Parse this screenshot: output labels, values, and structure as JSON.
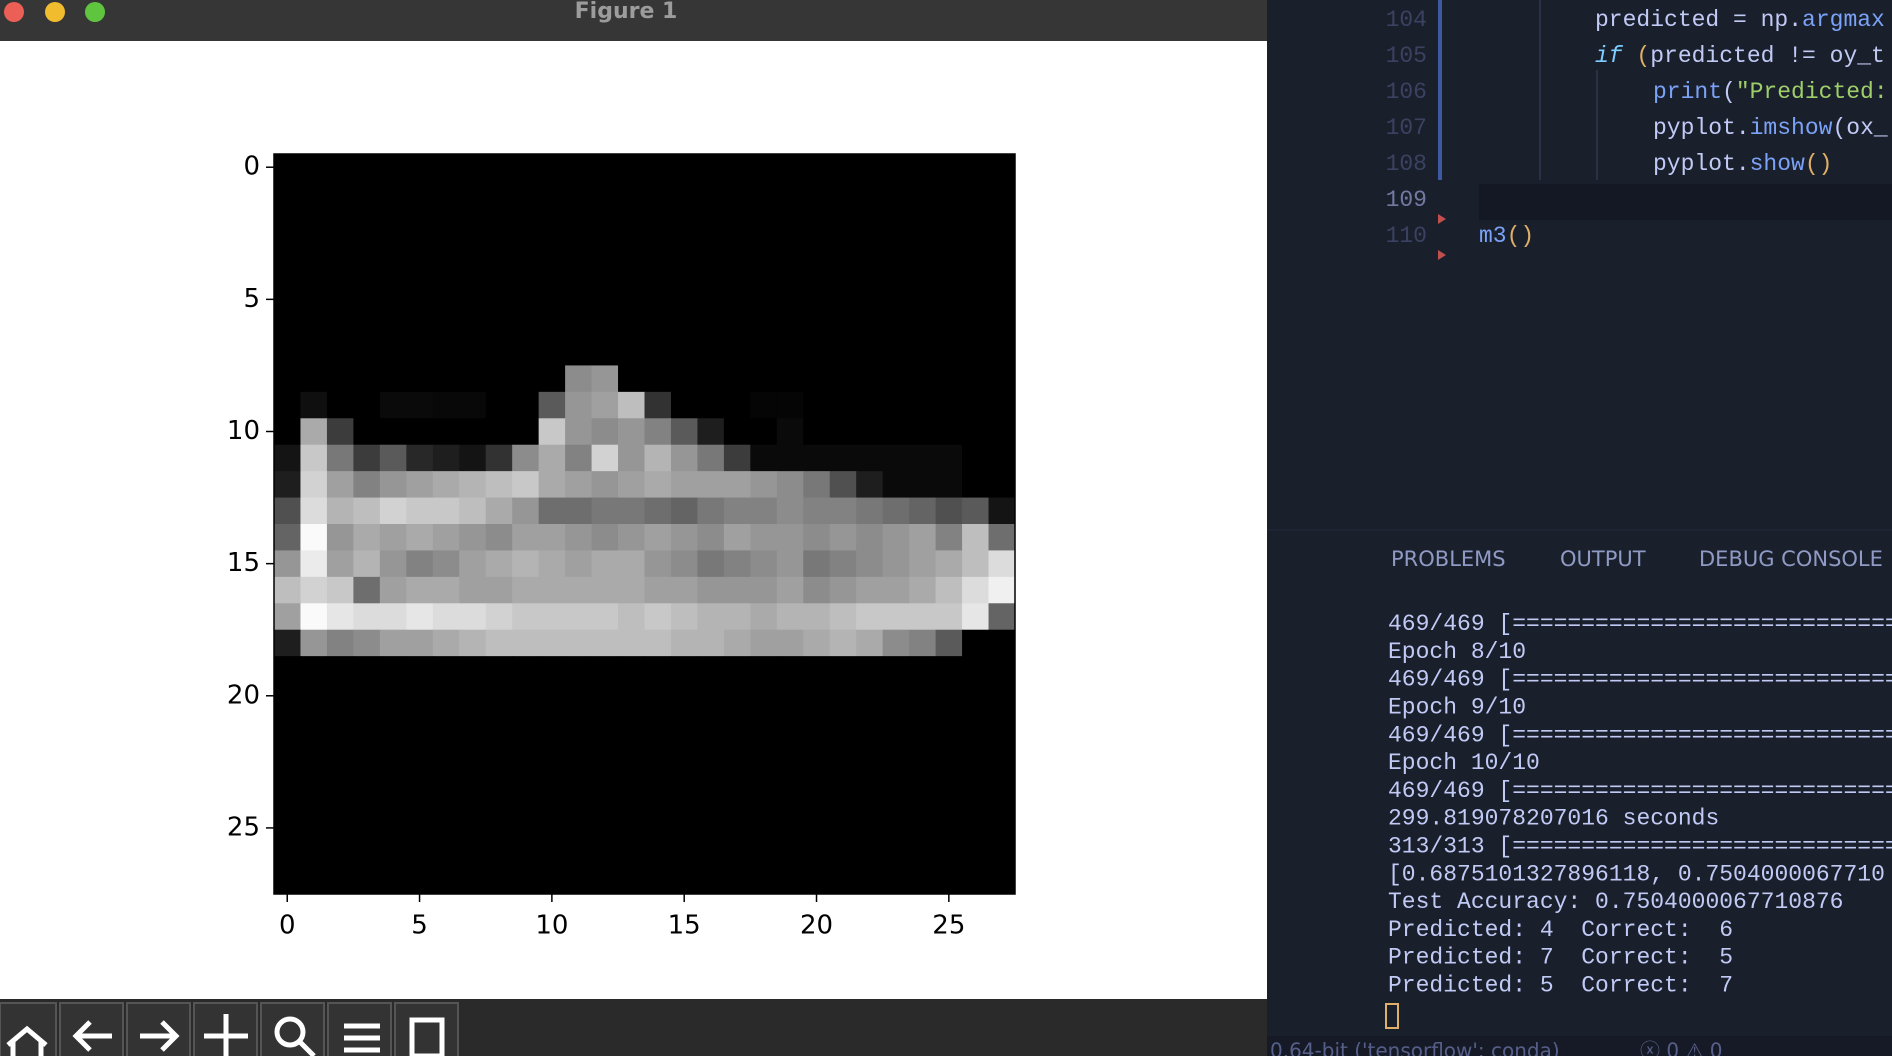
{
  "window": {
    "title": "Figure 1"
  },
  "chart_data": {
    "type": "heatmap",
    "cmap": "gray",
    "xlim": [
      -0.5,
      27.5
    ],
    "ylim": [
      27.5,
      -0.5
    ],
    "xticks": [
      0,
      5,
      10,
      15,
      20,
      25
    ],
    "yticks": [
      0,
      5,
      10,
      15,
      20,
      25
    ],
    "rows": [
      [
        0,
        0,
        0,
        0,
        0,
        0,
        0,
        0,
        0,
        0,
        0,
        0,
        0,
        0,
        0,
        0,
        0,
        0,
        0,
        0,
        0,
        0,
        0,
        0,
        0,
        0,
        0,
        0
      ],
      [
        0,
        0,
        0,
        0,
        0,
        0,
        0,
        0,
        0,
        0,
        0,
        0,
        0,
        0,
        0,
        0,
        0,
        0,
        0,
        0,
        0,
        0,
        0,
        0,
        0,
        0,
        0,
        0
      ],
      [
        0,
        0,
        0,
        0,
        0,
        0,
        0,
        0,
        0,
        0,
        0,
        0,
        0,
        0,
        0,
        0,
        0,
        0,
        0,
        0,
        0,
        0,
        0,
        0,
        0,
        0,
        0,
        0
      ],
      [
        0,
        0,
        0,
        0,
        0,
        0,
        0,
        0,
        0,
        0,
        0,
        0,
        0,
        0,
        0,
        0,
        0,
        0,
        0,
        0,
        0,
        0,
        0,
        0,
        0,
        0,
        0,
        0
      ],
      [
        0,
        0,
        0,
        0,
        0,
        0,
        0,
        0,
        0,
        0,
        0,
        0,
        0,
        0,
        0,
        0,
        0,
        0,
        0,
        0,
        0,
        0,
        0,
        0,
        0,
        0,
        0,
        0
      ],
      [
        0,
        0,
        0,
        0,
        0,
        0,
        0,
        0,
        0,
        0,
        0,
        0,
        0,
        0,
        0,
        0,
        0,
        0,
        0,
        0,
        0,
        0,
        0,
        0,
        0,
        0,
        0,
        0
      ],
      [
        0,
        0,
        0,
        0,
        0,
        0,
        0,
        0,
        0,
        0,
        0,
        0,
        0,
        0,
        0,
        0,
        0,
        0,
        0,
        0,
        0,
        0,
        0,
        0,
        0,
        0,
        0,
        0
      ],
      [
        0,
        0,
        0,
        0,
        0,
        0,
        0,
        0,
        0,
        0,
        0,
        0,
        0,
        0,
        0,
        0,
        0,
        0,
        0,
        0,
        0,
        0,
        0,
        0,
        0,
        0,
        0,
        0
      ],
      [
        0,
        0,
        0,
        0,
        0,
        0,
        0,
        0,
        0,
        0,
        0,
        140,
        150,
        0,
        0,
        0,
        0,
        0,
        0,
        0,
        0,
        0,
        0,
        0,
        0,
        0,
        0,
        0
      ],
      [
        0,
        15,
        0,
        0,
        10,
        10,
        8,
        8,
        0,
        0,
        90,
        150,
        160,
        190,
        50,
        0,
        0,
        0,
        5,
        5,
        0,
        0,
        0,
        0,
        0,
        0,
        0,
        0
      ],
      [
        0,
        170,
        60,
        0,
        0,
        0,
        0,
        0,
        0,
        0,
        200,
        150,
        140,
        150,
        130,
        90,
        30,
        0,
        0,
        10,
        0,
        0,
        0,
        0,
        0,
        0,
        0,
        0
      ],
      [
        20,
        200,
        120,
        60,
        90,
        40,
        30,
        20,
        50,
        140,
        170,
        130,
        210,
        150,
        180,
        150,
        120,
        60,
        10,
        10,
        10,
        10,
        10,
        10,
        10,
        10,
        0,
        0
      ],
      [
        30,
        210,
        160,
        130,
        150,
        160,
        170,
        180,
        190,
        200,
        170,
        160,
        150,
        160,
        170,
        160,
        160,
        160,
        150,
        140,
        120,
        80,
        30,
        10,
        10,
        10,
        0,
        0
      ],
      [
        80,
        220,
        180,
        190,
        210,
        200,
        200,
        190,
        170,
        150,
        110,
        110,
        120,
        120,
        110,
        100,
        120,
        130,
        130,
        140,
        130,
        130,
        120,
        110,
        100,
        80,
        90,
        20
      ],
      [
        100,
        250,
        150,
        170,
        160,
        170,
        160,
        150,
        140,
        160,
        160,
        150,
        140,
        150,
        160,
        150,
        140,
        160,
        150,
        150,
        140,
        150,
        140,
        150,
        160,
        130,
        190,
        110
      ],
      [
        150,
        235,
        160,
        180,
        150,
        130,
        140,
        160,
        170,
        180,
        170,
        160,
        170,
        170,
        150,
        140,
        120,
        130,
        140,
        150,
        120,
        130,
        140,
        150,
        160,
        170,
        190,
        220
      ],
      [
        190,
        210,
        200,
        110,
        160,
        170,
        170,
        160,
        160,
        170,
        170,
        170,
        170,
        170,
        160,
        160,
        150,
        150,
        150,
        160,
        140,
        150,
        160,
        160,
        170,
        190,
        220,
        240
      ],
      [
        160,
        250,
        230,
        220,
        220,
        230,
        220,
        220,
        210,
        200,
        200,
        200,
        200,
        190,
        200,
        190,
        180,
        180,
        170,
        180,
        180,
        190,
        200,
        200,
        200,
        200,
        230,
        100
      ],
      [
        30,
        150,
        130,
        140,
        160,
        160,
        170,
        180,
        190,
        190,
        190,
        190,
        190,
        190,
        190,
        180,
        180,
        170,
        160,
        160,
        170,
        180,
        170,
        140,
        130,
        90,
        0,
        0
      ],
      [
        0,
        0,
        0,
        0,
        0,
        0,
        0,
        0,
        0,
        0,
        0,
        0,
        0,
        0,
        0,
        0,
        0,
        0,
        0,
        0,
        0,
        0,
        0,
        0,
        0,
        0,
        0,
        0
      ],
      [
        0,
        0,
        0,
        0,
        0,
        0,
        0,
        0,
        0,
        0,
        0,
        0,
        0,
        0,
        0,
        0,
        0,
        0,
        0,
        0,
        0,
        0,
        0,
        0,
        0,
        0,
        0,
        0
      ],
      [
        0,
        0,
        0,
        0,
        0,
        0,
        0,
        0,
        0,
        0,
        0,
        0,
        0,
        0,
        0,
        0,
        0,
        0,
        0,
        0,
        0,
        0,
        0,
        0,
        0,
        0,
        0,
        0
      ],
      [
        0,
        0,
        0,
        0,
        0,
        0,
        0,
        0,
        0,
        0,
        0,
        0,
        0,
        0,
        0,
        0,
        0,
        0,
        0,
        0,
        0,
        0,
        0,
        0,
        0,
        0,
        0,
        0
      ],
      [
        0,
        0,
        0,
        0,
        0,
        0,
        0,
        0,
        0,
        0,
        0,
        0,
        0,
        0,
        0,
        0,
        0,
        0,
        0,
        0,
        0,
        0,
        0,
        0,
        0,
        0,
        0,
        0
      ],
      [
        0,
        0,
        0,
        0,
        0,
        0,
        0,
        0,
        0,
        0,
        0,
        0,
        0,
        0,
        0,
        0,
        0,
        0,
        0,
        0,
        0,
        0,
        0,
        0,
        0,
        0,
        0,
        0
      ],
      [
        0,
        0,
        0,
        0,
        0,
        0,
        0,
        0,
        0,
        0,
        0,
        0,
        0,
        0,
        0,
        0,
        0,
        0,
        0,
        0,
        0,
        0,
        0,
        0,
        0,
        0,
        0,
        0
      ],
      [
        0,
        0,
        0,
        0,
        0,
        0,
        0,
        0,
        0,
        0,
        0,
        0,
        0,
        0,
        0,
        0,
        0,
        0,
        0,
        0,
        0,
        0,
        0,
        0,
        0,
        0,
        0,
        0
      ],
      [
        0,
        0,
        0,
        0,
        0,
        0,
        0,
        0,
        0,
        0,
        0,
        0,
        0,
        0,
        0,
        0,
        0,
        0,
        0,
        0,
        0,
        0,
        0,
        0,
        0,
        0,
        0,
        0
      ]
    ]
  },
  "editor": {
    "lines": [
      {
        "number": "104",
        "indent": 2,
        "tokens": [
          {
            "text": "predicted = np.",
            "color": "#c0caf5"
          },
          {
            "text": "argmax",
            "color": "#7aa2f7"
          }
        ]
      },
      {
        "number": "105",
        "indent": 2,
        "tokens": [
          {
            "text": "if",
            "color": "#7dcfff"
          },
          {
            "text": " (",
            "color": "#e0af68"
          },
          {
            "text": "predicted != oy_t",
            "color": "#c0caf5"
          }
        ]
      },
      {
        "number": "106",
        "indent": 3,
        "tokens": [
          {
            "text": "print",
            "color": "#7aa2f7"
          },
          {
            "text": "(",
            "color": "#c0caf5"
          },
          {
            "text": "\"Predicted:",
            "color": "#9ece6a"
          }
        ]
      },
      {
        "number": "107",
        "indent": 3,
        "tokens": [
          {
            "text": "pyplot.",
            "color": "#c0caf5"
          },
          {
            "text": "imshow",
            "color": "#7aa2f7"
          },
          {
            "text": "(",
            "color": "#c0caf5"
          },
          {
            "text": "ox_",
            "color": "#c0caf5"
          }
        ]
      },
      {
        "number": "108",
        "indent": 3,
        "tokens": [
          {
            "text": "pyplot.",
            "color": "#c0caf5"
          },
          {
            "text": "show",
            "color": "#7aa2f7"
          },
          {
            "text": "()",
            "color": "#e0af68"
          }
        ]
      },
      {
        "number": "109",
        "indent": 0,
        "tokens": []
      },
      {
        "number": "110",
        "indent": 0,
        "tokens": [
          {
            "text": "m3",
            "color": "#7aa2f7"
          },
          {
            "text": "()",
            "color": "#e0af68"
          }
        ]
      }
    ]
  },
  "panel": {
    "tabs": [
      "PROBLEMS",
      "OUTPUT",
      "DEBUG CONSOLE"
    ]
  },
  "terminal": {
    "lines": [
      "469/469 [==============================",
      "Epoch 8/10",
      "469/469 [==============================",
      "Epoch 9/10",
      "469/469 [==============================",
      "Epoch 10/10",
      "469/469 [==============================",
      "299.819078207016 seconds",
      "313/313 [==============================",
      "[0.6875101327896118, 0.7504000067710",
      "Test Accuracy: 0.7504000067710876",
      "Predicted: 4  Correct:  6",
      "Predicted: 7  Correct:  5",
      "Predicted: 5  Correct:  7"
    ]
  },
  "status": {
    "interpreter": "0.64-bit ('tensorflow': conda)",
    "problems": "ⓧ 0 ⚠ 0"
  }
}
